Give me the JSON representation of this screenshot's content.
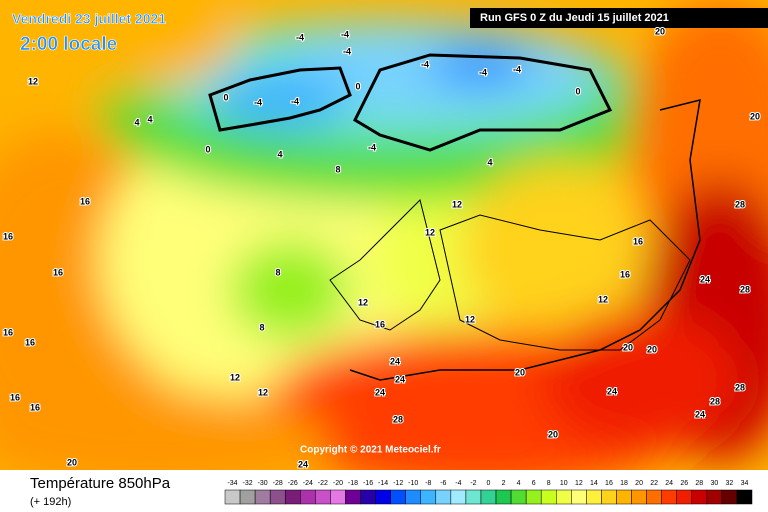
{
  "header": {
    "valid_date": "Vendredi 23 juillet 2021",
    "local_time": "2:00 locale",
    "run": "Run GFS 0 Z du Jeudi 15 juillet 2021",
    "copyright": "Copyright © 2021 Meteociel.fr"
  },
  "footer": {
    "title": "Température 850hPa",
    "lead_time": "(+ 192h)"
  },
  "legend": {
    "values": [
      -34,
      -32,
      -30,
      -28,
      -26,
      -24,
      -22,
      -20,
      -18,
      -16,
      -14,
      -12,
      -10,
      -8,
      -6,
      -4,
      -2,
      0,
      2,
      4,
      6,
      8,
      10,
      12,
      14,
      16,
      18,
      20,
      22,
      24,
      26,
      28,
      30,
      32,
      34
    ],
    "colors": [
      "#c8c8c8",
      "#a0a0a0",
      "#a07ca0",
      "#8c508c",
      "#781e78",
      "#aa32aa",
      "#c850c8",
      "#e678e6",
      "#6e0096",
      "#2800aa",
      "#0000e6",
      "#0050ff",
      "#1e8cff",
      "#3cb4ff",
      "#78d2ff",
      "#a0ebff",
      "#6ee6d2",
      "#32d296",
      "#1ec850",
      "#50dc32",
      "#96f01e",
      "#c8ff1e",
      "#f0ff46",
      "#ffff78",
      "#fff03c",
      "#ffd21e",
      "#ffb400",
      "#ff9600",
      "#ff6e00",
      "#ff3c00",
      "#f01e00",
      "#c80000",
      "#a00000",
      "#640000",
      "#000000"
    ]
  },
  "map_labels": [
    -4,
    -4,
    -4,
    -4,
    -4,
    -4,
    -4,
    -4,
    0,
    0,
    0,
    0,
    4,
    4,
    4,
    -4,
    4,
    8,
    8,
    8,
    12,
    12,
    12,
    12,
    12,
    12,
    12,
    12,
    16,
    16,
    16,
    16,
    16,
    16,
    16,
    16,
    16,
    16,
    20,
    20,
    20,
    20,
    24,
    24,
    24,
    24,
    24,
    24,
    28,
    28,
    28,
    28,
    20,
    20,
    20,
    24,
    28
  ]
}
